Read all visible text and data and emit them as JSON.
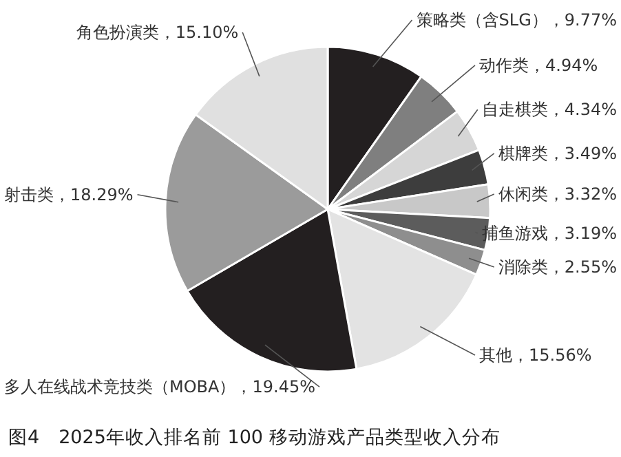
{
  "chart_data": {
    "type": "pie",
    "title": "图4　2025年收入排名前 100 移动游戏产品类型收入分布",
    "categories": [
      "策略类（含SLG）",
      "动作类",
      "自走棋类",
      "棋牌类",
      "休闲类",
      "捕鱼游戏",
      "消除类",
      "其他",
      "多人在线战术竞技类（MOBA）",
      "射击类",
      "角色扮演类"
    ],
    "values": [
      9.77,
      4.94,
      4.34,
      3.49,
      3.32,
      3.19,
      2.55,
      15.56,
      19.45,
      18.29,
      15.1
    ],
    "value_labels": [
      "9.77%",
      "4.94%",
      "4.34%",
      "3.49%",
      "3.32%",
      "3.19%",
      "2.55%",
      "15.56%",
      "19.45%",
      "18.29%",
      "15.10%"
    ],
    "colors": [
      "#231f20",
      "#7f7f7f",
      "#d6d6d6",
      "#3d3d3d",
      "#c8c8c8",
      "#5c5c5c",
      "#8e8e8e",
      "#e3e3e3",
      "#231f20",
      "#9b9b9b",
      "#e0e0e0"
    ]
  }
}
